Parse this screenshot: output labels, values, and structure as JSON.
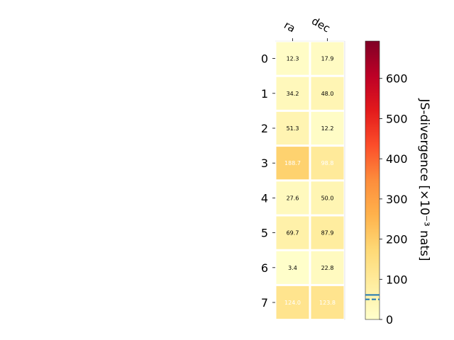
{
  "chart_data": [
    {
      "type": "heatmap",
      "columns": [
        "ra",
        "dec"
      ],
      "rows": [
        "0",
        "1",
        "2",
        "3",
        "4",
        "5",
        "6",
        "7"
      ],
      "values": [
        [
          12.3,
          17.9
        ],
        [
          34.2,
          48.0
        ],
        [
          51.3,
          12.2
        ],
        [
          188.7,
          98.8
        ],
        [
          27.6,
          50.0
        ],
        [
          69.7,
          87.9
        ],
        [
          3.4,
          22.8
        ],
        [
          124.0,
          123.8
        ]
      ],
      "cell_labels": [
        [
          "12.3",
          "17.9"
        ],
        [
          "34.2",
          "48.0"
        ],
        [
          "51.3",
          "12.2"
        ],
        [
          "188.7",
          "98.8"
        ],
        [
          "27.6",
          "50.0"
        ],
        [
          "69.7",
          "87.9"
        ],
        [
          "3.4",
          "22.8"
        ],
        [
          "124.0",
          "123.8"
        ]
      ],
      "colormap": "YlOrRd",
      "vmin": 0,
      "vmax": 693,
      "light_text_above": 90
    },
    {
      "type": "colorbar",
      "label": "JS-divergence [×10⁻³ nats]",
      "ticks": [
        0,
        100,
        200,
        300,
        400,
        500,
        600
      ],
      "tick_labels": [
        "0",
        "100",
        "200",
        "300",
        "400",
        "500",
        "600"
      ],
      "ylim": [
        0,
        693
      ],
      "reference_lines": [
        {
          "value": 61,
          "style": "solid",
          "color": "#1f77b4"
        },
        {
          "value": 50,
          "style": "dashed",
          "color": "#1f77b4"
        }
      ]
    }
  ]
}
